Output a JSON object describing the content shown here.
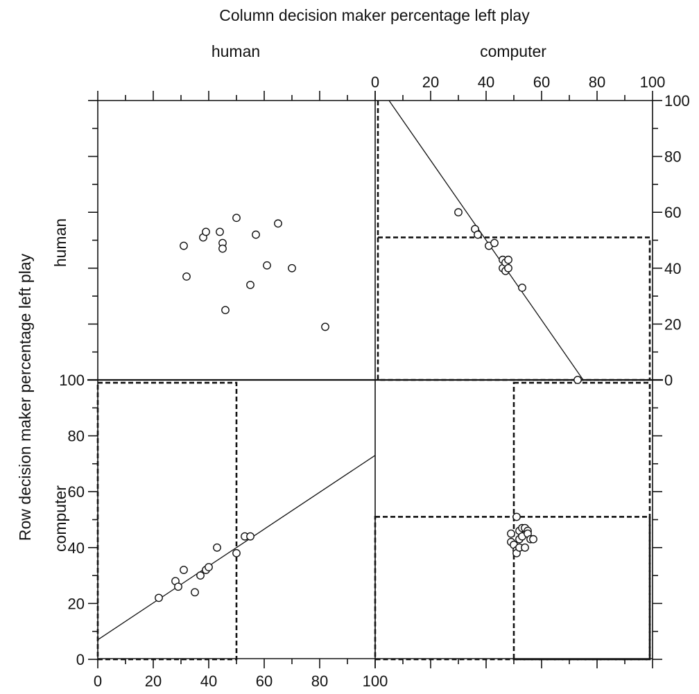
{
  "chart_data": {
    "type": "scatter",
    "title": "",
    "xlabel": "Column decision maker percentage left play",
    "ylabel": "Row decision maker percentage left play",
    "column_groups": [
      "human",
      "computer"
    ],
    "row_groups": [
      "human",
      "computer"
    ],
    "xlim": [
      0,
      100
    ],
    "ylim": [
      0,
      100
    ],
    "ticks": [
      0,
      20,
      40,
      60,
      80,
      100
    ],
    "grid": false,
    "legend": "none",
    "panels": [
      {
        "row": "human",
        "column": "human",
        "points": [
          {
            "x": 31,
            "y": 48
          },
          {
            "x": 32,
            "y": 37
          },
          {
            "x": 38,
            "y": 51
          },
          {
            "x": 39,
            "y": 53
          },
          {
            "x": 44,
            "y": 53
          },
          {
            "x": 45,
            "y": 49
          },
          {
            "x": 45,
            "y": 47
          },
          {
            "x": 46,
            "y": 25
          },
          {
            "x": 50,
            "y": 58
          },
          {
            "x": 55,
            "y": 34
          },
          {
            "x": 57,
            "y": 52
          },
          {
            "x": 61,
            "y": 41
          },
          {
            "x": 65,
            "y": 56
          },
          {
            "x": 70,
            "y": 40
          },
          {
            "x": 82,
            "y": 19
          }
        ]
      },
      {
        "row": "human",
        "column": "computer",
        "line": {
          "x1": 5,
          "y1": 100,
          "x2": 75,
          "y2": 0
        },
        "dashed_box": {
          "x": [
            1,
            99
          ],
          "y": [
            0,
            51
          ]
        },
        "dashed_vertical_x": 1,
        "points": [
          {
            "x": 30,
            "y": 60
          },
          {
            "x": 36,
            "y": 54
          },
          {
            "x": 37,
            "y": 52
          },
          {
            "x": 41,
            "y": 48
          },
          {
            "x": 43,
            "y": 49
          },
          {
            "x": 46,
            "y": 43
          },
          {
            "x": 46,
            "y": 40
          },
          {
            "x": 47,
            "y": 42
          },
          {
            "x": 47,
            "y": 39
          },
          {
            "x": 48,
            "y": 43
          },
          {
            "x": 48,
            "y": 40
          },
          {
            "x": 53,
            "y": 33
          },
          {
            "x": 73,
            "y": 0
          }
        ]
      },
      {
        "row": "computer",
        "column": "human",
        "line": {
          "x1": 0,
          "y1": 7,
          "x2": 100,
          "y2": 73
        },
        "dashed_box": {
          "x": [
            0,
            50
          ],
          "y": [
            0,
            99
          ]
        },
        "points": [
          {
            "x": 22,
            "y": 22
          },
          {
            "x": 28,
            "y": 28
          },
          {
            "x": 29,
            "y": 26
          },
          {
            "x": 31,
            "y": 32
          },
          {
            "x": 35,
            "y": 24
          },
          {
            "x": 37,
            "y": 30
          },
          {
            "x": 39,
            "y": 32
          },
          {
            "x": 40,
            "y": 33
          },
          {
            "x": 43,
            "y": 40
          },
          {
            "x": 50,
            "y": 38
          },
          {
            "x": 53,
            "y": 44
          },
          {
            "x": 55,
            "y": 44
          }
        ]
      },
      {
        "row": "computer",
        "column": "computer",
        "dashed_box_top": {
          "x": [
            0,
            99
          ],
          "y": [
            0,
            51
          ]
        },
        "dashed_box_right": {
          "x": [
            50,
            99
          ],
          "y": [
            0,
            99
          ]
        },
        "points": [
          {
            "x": 49,
            "y": 45
          },
          {
            "x": 49,
            "y": 42
          },
          {
            "x": 50,
            "y": 41
          },
          {
            "x": 51,
            "y": 39
          },
          {
            "x": 51,
            "y": 38
          },
          {
            "x": 51,
            "y": 51
          },
          {
            "x": 52,
            "y": 46
          },
          {
            "x": 52,
            "y": 43
          },
          {
            "x": 52,
            "y": 40
          },
          {
            "x": 53,
            "y": 47
          },
          {
            "x": 53,
            "y": 44
          },
          {
            "x": 54,
            "y": 47
          },
          {
            "x": 54,
            "y": 40
          },
          {
            "x": 55,
            "y": 46
          },
          {
            "x": 55,
            "y": 45
          },
          {
            "x": 56,
            "y": 43
          },
          {
            "x": 57,
            "y": 43
          }
        ]
      }
    ]
  }
}
